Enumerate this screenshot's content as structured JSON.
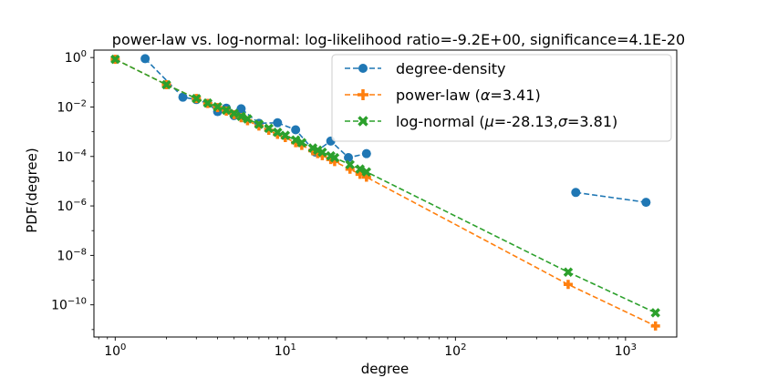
{
  "chart_data": {
    "type": "line",
    "title": "power-law vs. log-normal: log-likelihood ratio=-9.2E+00, significance=4.1E-20",
    "xlabel": "degree",
    "ylabel": "PDF(degree)",
    "xscale": "log",
    "yscale": "log",
    "xlim": [
      0.75,
      2000
    ],
    "ylim": [
      5e-12,
      2.0
    ],
    "x_ticks": [
      {
        "value": 1,
        "base": "10",
        "exp": "0"
      },
      {
        "value": 10,
        "base": "10",
        "exp": "1"
      },
      {
        "value": 100,
        "base": "10",
        "exp": "2"
      },
      {
        "value": 1000,
        "base": "10",
        "exp": "3"
      }
    ],
    "y_ticks": [
      {
        "value": 1.0,
        "base": "10",
        "exp": "0"
      },
      {
        "value": 0.01,
        "base": "10",
        "exp": "−2"
      },
      {
        "value": 0.0001,
        "base": "10",
        "exp": "−4"
      },
      {
        "value": 1e-06,
        "base": "10",
        "exp": "−6"
      },
      {
        "value": 1e-08,
        "base": "10",
        "exp": "−8"
      },
      {
        "value": 1e-10,
        "base": "10",
        "exp": "−10"
      }
    ],
    "legend_position": "top-right",
    "series": [
      {
        "name": "degree-density",
        "legend_label": "degree-density",
        "color": "#1f77b4",
        "marker": "circle",
        "segments": [
          {
            "x": [
              1.5,
              2.5,
              3.0,
              3.5,
              4.0,
              4.5,
              5.0,
              5.5,
              7.0,
              9.0,
              11.5,
              15.0,
              18.5,
              23.5,
              30.0
            ],
            "y": [
              0.9,
              0.025,
              0.02,
              0.014,
              0.0065,
              0.009,
              0.0045,
              0.0085,
              0.0022,
              0.0023,
              0.0012,
              0.00015,
              0.00042,
              9e-05,
              0.00013
            ]
          },
          {
            "x": [
              510,
              1320
            ],
            "y": [
              3.5e-06,
              1.4e-06
            ]
          }
        ]
      },
      {
        "name": "power-law",
        "legend_label": "power-law (",
        "legend_greek": "α",
        "legend_tail": "=3.41)",
        "color": "#ff7f0e",
        "marker": "plus",
        "segments": [
          {
            "x": [
              1.0,
              2.0,
              3.0,
              3.5,
              4.0,
              4.5,
              5.0,
              5.5,
              6.0,
              7.0,
              8.0,
              9.0,
              10.0,
              11.5,
              12.5,
              14.5,
              15.5,
              16.5,
              18.5,
              19.5,
              24.0,
              27.5,
              30.0,
              460,
              1500
            ],
            "y": [
              0.85,
              0.08,
              0.022,
              0.0138,
              0.0095,
              0.0068,
              0.0049,
              0.0037,
              0.0028,
              0.0017,
              0.00115,
              0.00078,
              0.00058,
              0.00036,
              0.00028,
              0.00017,
              0.00013,
              0.000108,
              7.5e-05,
              6.2e-05,
              3.05e-05,
              1.9e-05,
              1.45e-05,
              6.7e-10,
              1.4e-11
            ]
          }
        ]
      },
      {
        "name": "log-normal",
        "legend_label": "log-normal (",
        "legend_greek": "μ",
        "legend_mid": "=-28.13,",
        "legend_greek2": "σ",
        "legend_tail": "=3.81)",
        "color": "#2ca02c",
        "marker": "x",
        "segments": [
          {
            "x": [
              1.0,
              2.0,
              3.0,
              3.5,
              4.0,
              4.5,
              5.0,
              5.5,
              6.0,
              7.0,
              8.0,
              9.0,
              10.0,
              11.5,
              12.5,
              14.5,
              15.5,
              16.5,
              18.5,
              19.5,
              24.0,
              27.5,
              30.0,
              460,
              1500
            ],
            "y": [
              0.85,
              0.08,
              0.022,
              0.0145,
              0.0102,
              0.0074,
              0.0055,
              0.0042,
              0.0033,
              0.002,
              0.00138,
              0.00095,
              0.00071,
              0.00046,
              0.00036,
              0.00022,
              0.00018,
              0.000148,
              0.000106,
              8.9e-05,
              4.7e-05,
              3.1e-05,
              2.38e-05,
              2.1e-09,
              4.8e-11
            ]
          }
        ]
      }
    ]
  }
}
